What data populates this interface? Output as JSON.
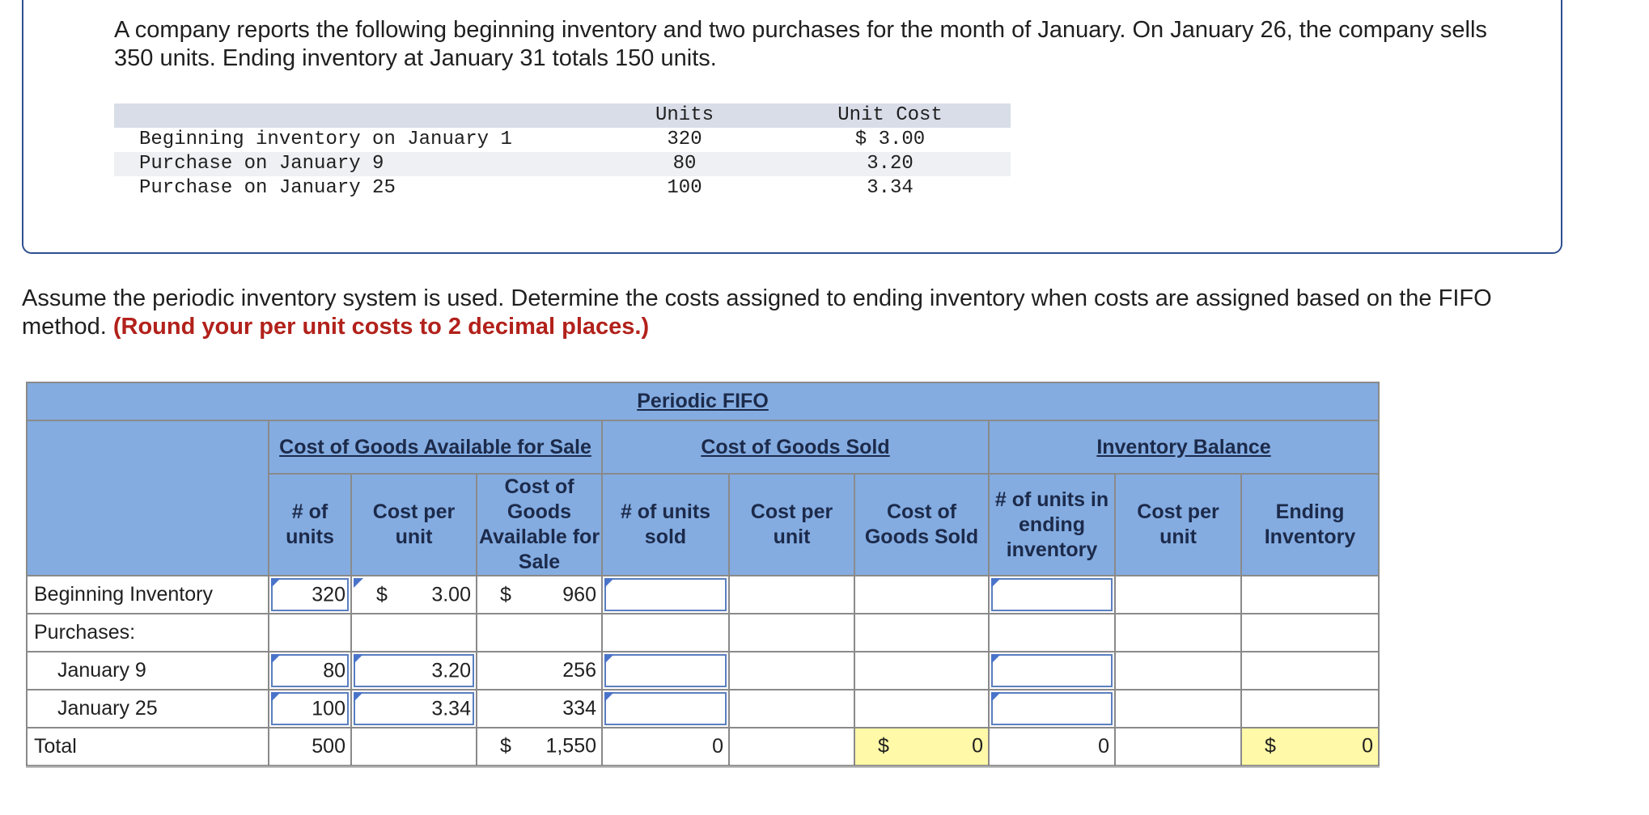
{
  "question": {
    "text": "A company reports the following beginning inventory and two purchases for the month of January. On January 26, the company sells 350 units. Ending inventory at January 31 totals 150 units.",
    "table": {
      "headers": {
        "units": "Units",
        "unit_cost": "Unit Cost"
      },
      "rows": [
        {
          "desc": "Beginning inventory on January 1",
          "units": "320",
          "cost": "$ 3.00"
        },
        {
          "desc": "Purchase on January 9",
          "units": "80",
          "cost": "3.20"
        },
        {
          "desc": "Purchase on January 25",
          "units": "100",
          "cost": "3.34"
        }
      ]
    }
  },
  "instructions": {
    "text": "Assume the periodic inventory system is used. Determine the costs assigned to ending inventory when costs are assigned based on the FIFO method.",
    "emphasis": "(Round your per unit costs to 2 decimal places.)"
  },
  "fifo": {
    "title": "Periodic FIFO",
    "groups": {
      "available": "Cost of Goods Available for Sale",
      "sold": "Cost of Goods Sold",
      "balance": "Inventory Balance"
    },
    "columns": {
      "avail_units": "# of units",
      "avail_cpu": "Cost per unit",
      "avail_cost": "Cost of Goods Available for Sale",
      "sold_units": "# of units sold",
      "sold_cpu": "Cost per unit",
      "sold_cost": "Cost of Goods Sold",
      "end_units": "# of units in ending inventory",
      "end_cpu": "Cost per unit",
      "end_inv": "Ending Inventory"
    },
    "rows": {
      "beginning": {
        "label": "Beginning Inventory",
        "units": "320",
        "cpu_sign": "$",
        "cpu": "3.00",
        "cost_sign": "$",
        "cost": "960"
      },
      "purchases": {
        "label": "Purchases:"
      },
      "jan9": {
        "label": "January 9",
        "units": "80",
        "cpu": "3.20",
        "cost": "256"
      },
      "jan25": {
        "label": "January 25",
        "units": "100",
        "cpu": "3.34",
        "cost": "334"
      },
      "total": {
        "label": "Total",
        "units": "500",
        "cost_sign": "$",
        "cost": "1,550",
        "sold_units": "0",
        "sold_cost_sign": "$",
        "sold_cost": "0",
        "end_units": "0",
        "end_inv_sign": "$",
        "end_inv": "0"
      }
    },
    "colors": {
      "header_bg": "#84ace1",
      "highlight": "#fff9a8",
      "emphasis": "#b2211b"
    }
  }
}
